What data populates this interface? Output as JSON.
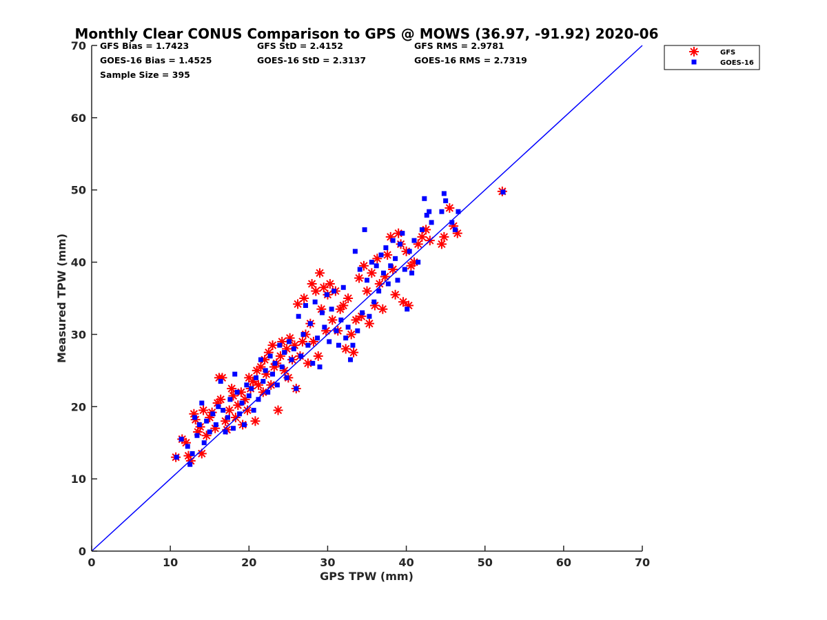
{
  "chart_data": {
    "type": "scatter",
    "title": "Monthly Clear CONUS Comparison to GPS @ MOWS (36.97, -91.92) 2020-06",
    "xlabel": "GPS TPW (mm)",
    "ylabel": "Measured TPW (mm)",
    "xlim": [
      0,
      70
    ],
    "ylim": [
      0,
      70
    ],
    "xticks": [
      0,
      10,
      20,
      30,
      40,
      50,
      60,
      70
    ],
    "yticks": [
      0,
      10,
      20,
      30,
      40,
      50,
      60,
      70
    ],
    "grid": false,
    "legend_position": "outside-top-right",
    "reference_line": {
      "x": [
        0,
        70
      ],
      "y": [
        0,
        70
      ],
      "color": "#0000ff"
    },
    "stats": {
      "gfs_bias": "GFS Bias = 1.7423",
      "goes_bias": "GOES-16 Bias = 1.4525",
      "sample_size": "Sample Size = 395",
      "gfs_std": "GFS StD = 2.4152",
      "goes_std": "GOES-16 StD = 2.3137",
      "gfs_rms": "GFS RMS = 2.9781",
      "goes_rms": "GOES-16 RMS = 2.7319"
    },
    "series": [
      {
        "name": "GFS",
        "marker": "asterisk",
        "color": "#ff0000",
        "points": [
          [
            10.7,
            13.0
          ],
          [
            11.5,
            15.5
          ],
          [
            12.0,
            15.0
          ],
          [
            12.3,
            13.2
          ],
          [
            12.6,
            12.5
          ],
          [
            13.0,
            19.0
          ],
          [
            13.2,
            18.2
          ],
          [
            13.5,
            16.5
          ],
          [
            13.8,
            17.2
          ],
          [
            14.0,
            13.5
          ],
          [
            14.2,
            19.5
          ],
          [
            14.6,
            16.0
          ],
          [
            15.0,
            18.5
          ],
          [
            15.3,
            19.2
          ],
          [
            15.7,
            17.0
          ],
          [
            16.0,
            20.5
          ],
          [
            16.2,
            24.0
          ],
          [
            16.4,
            21.0
          ],
          [
            16.6,
            24.0
          ],
          [
            17.0,
            18.0
          ],
          [
            17.2,
            16.8
          ],
          [
            17.5,
            19.5
          ],
          [
            17.8,
            22.5
          ],
          [
            18.0,
            21.5
          ],
          [
            18.3,
            18.5
          ],
          [
            18.6,
            20.2
          ],
          [
            19.0,
            22.0
          ],
          [
            19.2,
            17.5
          ],
          [
            19.5,
            21.0
          ],
          [
            19.8,
            19.5
          ],
          [
            20.0,
            24.0
          ],
          [
            20.2,
            22.5
          ],
          [
            20.5,
            23.5
          ],
          [
            20.8,
            18.0
          ],
          [
            21.0,
            25.0
          ],
          [
            21.2,
            23.0
          ],
          [
            21.5,
            25.5
          ],
          [
            21.8,
            22.0
          ],
          [
            22.0,
            26.5
          ],
          [
            22.2,
            24.5
          ],
          [
            22.5,
            27.5
          ],
          [
            22.8,
            23.0
          ],
          [
            23.0,
            28.5
          ],
          [
            23.2,
            25.5
          ],
          [
            23.5,
            26.0
          ],
          [
            23.7,
            19.5
          ],
          [
            24.0,
            27.0
          ],
          [
            24.2,
            29.0
          ],
          [
            24.5,
            25.0
          ],
          [
            24.8,
            28.0
          ],
          [
            25.0,
            24.0
          ],
          [
            25.2,
            29.5
          ],
          [
            25.5,
            26.5
          ],
          [
            25.8,
            28.5
          ],
          [
            26.0,
            22.5
          ],
          [
            26.2,
            34.2
          ],
          [
            26.5,
            27.0
          ],
          [
            26.8,
            29.0
          ],
          [
            27.0,
            35.0
          ],
          [
            27.2,
            30.0
          ],
          [
            27.5,
            26.0
          ],
          [
            27.8,
            31.5
          ],
          [
            28.0,
            37.0
          ],
          [
            28.2,
            29.0
          ],
          [
            28.5,
            36.0
          ],
          [
            28.8,
            27.0
          ],
          [
            29.0,
            38.5
          ],
          [
            29.2,
            33.5
          ],
          [
            29.5,
            36.5
          ],
          [
            29.8,
            30.5
          ],
          [
            30.0,
            35.5
          ],
          [
            30.3,
            37.0
          ],
          [
            30.6,
            32.0
          ],
          [
            31.0,
            36.0
          ],
          [
            31.3,
            30.5
          ],
          [
            31.6,
            33.5
          ],
          [
            32.0,
            34.0
          ],
          [
            32.3,
            28.0
          ],
          [
            32.6,
            35.0
          ],
          [
            33.0,
            30.0
          ],
          [
            33.3,
            27.5
          ],
          [
            33.6,
            32.0
          ],
          [
            34.0,
            37.8
          ],
          [
            34.3,
            32.5
          ],
          [
            34.6,
            39.5
          ],
          [
            35.0,
            36.0
          ],
          [
            35.3,
            31.5
          ],
          [
            35.6,
            38.5
          ],
          [
            36.0,
            34.0
          ],
          [
            36.3,
            40.5
          ],
          [
            36.6,
            37.0
          ],
          [
            37.0,
            33.5
          ],
          [
            37.3,
            38.0
          ],
          [
            37.6,
            41.0
          ],
          [
            38.0,
            43.5
          ],
          [
            38.3,
            39.0
          ],
          [
            38.6,
            35.5
          ],
          [
            39.0,
            44.0
          ],
          [
            39.3,
            42.5
          ],
          [
            39.6,
            34.5
          ],
          [
            40.0,
            41.5
          ],
          [
            40.3,
            34.0
          ],
          [
            40.6,
            39.5
          ],
          [
            41.0,
            40.0
          ],
          [
            41.5,
            42.5
          ],
          [
            42.0,
            43.5
          ],
          [
            42.5,
            44.5
          ],
          [
            43.0,
            43.0
          ],
          [
            44.5,
            42.5
          ],
          [
            44.8,
            43.5
          ],
          [
            45.5,
            47.5
          ],
          [
            46.0,
            45.0
          ],
          [
            46.5,
            44.0
          ],
          [
            52.2,
            49.8
          ]
        ]
      },
      {
        "name": "GOES-16",
        "marker": "square",
        "color": "#0000ff",
        "points": [
          [
            10.8,
            13.0
          ],
          [
            11.4,
            15.5
          ],
          [
            12.2,
            14.5
          ],
          [
            12.5,
            12.0
          ],
          [
            12.8,
            13.5
          ],
          [
            13.1,
            18.5
          ],
          [
            13.4,
            16.0
          ],
          [
            13.7,
            17.5
          ],
          [
            14.0,
            20.5
          ],
          [
            14.3,
            15.0
          ],
          [
            14.6,
            18.0
          ],
          [
            15.0,
            16.5
          ],
          [
            15.4,
            19.0
          ],
          [
            15.8,
            17.5
          ],
          [
            16.1,
            20.0
          ],
          [
            16.4,
            23.5
          ],
          [
            16.7,
            19.5
          ],
          [
            17.0,
            16.5
          ],
          [
            17.3,
            18.5
          ],
          [
            17.6,
            21.0
          ],
          [
            18.0,
            17.0
          ],
          [
            18.2,
            24.5
          ],
          [
            18.5,
            22.0
          ],
          [
            18.8,
            19.0
          ],
          [
            19.1,
            20.5
          ],
          [
            19.4,
            17.5
          ],
          [
            19.7,
            23.0
          ],
          [
            20.0,
            21.5
          ],
          [
            20.3,
            22.5
          ],
          [
            20.6,
            19.5
          ],
          [
            20.9,
            24.0
          ],
          [
            21.2,
            21.0
          ],
          [
            21.5,
            26.5
          ],
          [
            21.8,
            23.5
          ],
          [
            22.1,
            25.0
          ],
          [
            22.4,
            22.0
          ],
          [
            22.7,
            27.0
          ],
          [
            23.0,
            24.5
          ],
          [
            23.3,
            26.0
          ],
          [
            23.6,
            23.0
          ],
          [
            23.9,
            28.5
          ],
          [
            24.2,
            25.5
          ],
          [
            24.5,
            27.5
          ],
          [
            24.8,
            24.0
          ],
          [
            25.1,
            29.0
          ],
          [
            25.4,
            26.5
          ],
          [
            25.7,
            28.0
          ],
          [
            26.0,
            22.5
          ],
          [
            26.3,
            32.5
          ],
          [
            26.6,
            27.0
          ],
          [
            26.9,
            30.0
          ],
          [
            27.2,
            34.0
          ],
          [
            27.5,
            28.5
          ],
          [
            27.8,
            31.5
          ],
          [
            28.1,
            26.0
          ],
          [
            28.4,
            34.5
          ],
          [
            28.7,
            29.5
          ],
          [
            29.0,
            25.5
          ],
          [
            29.3,
            33.0
          ],
          [
            29.6,
            31.0
          ],
          [
            29.9,
            35.5
          ],
          [
            30.2,
            29.0
          ],
          [
            30.5,
            33.5
          ],
          [
            30.8,
            36.0
          ],
          [
            31.1,
            30.5
          ],
          [
            31.4,
            28.5
          ],
          [
            31.7,
            32.0
          ],
          [
            32.0,
            36.5
          ],
          [
            32.3,
            29.5
          ],
          [
            32.6,
            31.0
          ],
          [
            32.9,
            26.5
          ],
          [
            33.2,
            28.5
          ],
          [
            33.5,
            41.5
          ],
          [
            33.8,
            30.5
          ],
          [
            34.1,
            39.0
          ],
          [
            34.4,
            33.0
          ],
          [
            34.7,
            44.5
          ],
          [
            35.0,
            37.5
          ],
          [
            35.3,
            32.5
          ],
          [
            35.6,
            40.0
          ],
          [
            35.9,
            34.5
          ],
          [
            36.2,
            39.5
          ],
          [
            36.5,
            36.0
          ],
          [
            36.8,
            41.0
          ],
          [
            37.1,
            38.5
          ],
          [
            37.4,
            42.0
          ],
          [
            37.7,
            37.0
          ],
          [
            38.0,
            39.5
          ],
          [
            38.3,
            43.0
          ],
          [
            38.6,
            40.5
          ],
          [
            38.9,
            37.5
          ],
          [
            39.2,
            42.5
          ],
          [
            39.5,
            44.0
          ],
          [
            39.8,
            39.0
          ],
          [
            40.1,
            33.5
          ],
          [
            40.4,
            41.5
          ],
          [
            40.7,
            38.5
          ],
          [
            41.0,
            43.0
          ],
          [
            41.5,
            40.0
          ],
          [
            42.0,
            44.5
          ],
          [
            42.3,
            48.8
          ],
          [
            42.6,
            46.5
          ],
          [
            42.9,
            47.0
          ],
          [
            43.2,
            45.5
          ],
          [
            44.5,
            47.0
          ],
          [
            44.8,
            49.5
          ],
          [
            45.0,
            48.5
          ],
          [
            45.8,
            45.5
          ],
          [
            46.2,
            44.5
          ],
          [
            46.6,
            47.0
          ],
          [
            52.3,
            49.7
          ]
        ]
      }
    ]
  }
}
